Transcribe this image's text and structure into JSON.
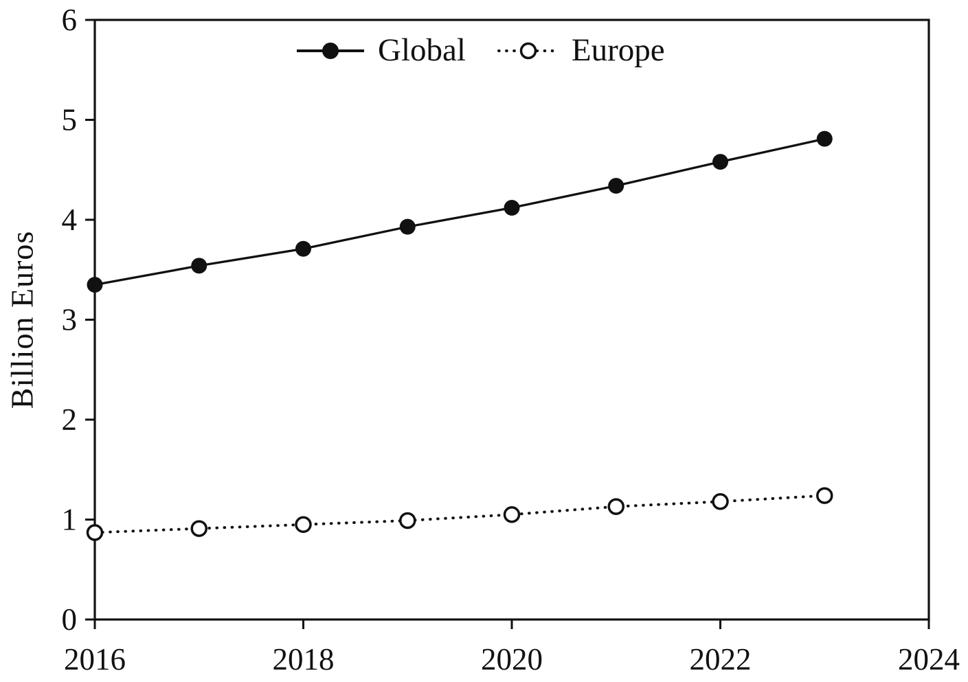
{
  "chart_data": {
    "type": "line",
    "title": "",
    "xlabel": "",
    "ylabel": "Billion Euros",
    "x": [
      2016,
      2017,
      2018,
      2019,
      2020,
      2021,
      2022,
      2023
    ],
    "series": [
      {
        "name": "Global",
        "line": "solid",
        "marker": "filled-circle",
        "values": [
          3.35,
          3.54,
          3.71,
          3.93,
          4.12,
          4.34,
          4.58,
          4.81
        ]
      },
      {
        "name": "Europe",
        "line": "dotted",
        "marker": "open-circle",
        "values": [
          0.87,
          0.91,
          0.95,
          0.99,
          1.05,
          1.13,
          1.18,
          1.24
        ]
      }
    ],
    "xlim": [
      2016,
      2024
    ],
    "ylim": [
      0,
      6
    ],
    "x_ticks": [
      2016,
      2018,
      2020,
      2022,
      2024
    ],
    "y_ticks": [
      0,
      1,
      2,
      3,
      4,
      5,
      6
    ],
    "grid": false,
    "legend_position": "top-center-inside",
    "axis_color": "#111111",
    "background_color": "#ffffff"
  }
}
